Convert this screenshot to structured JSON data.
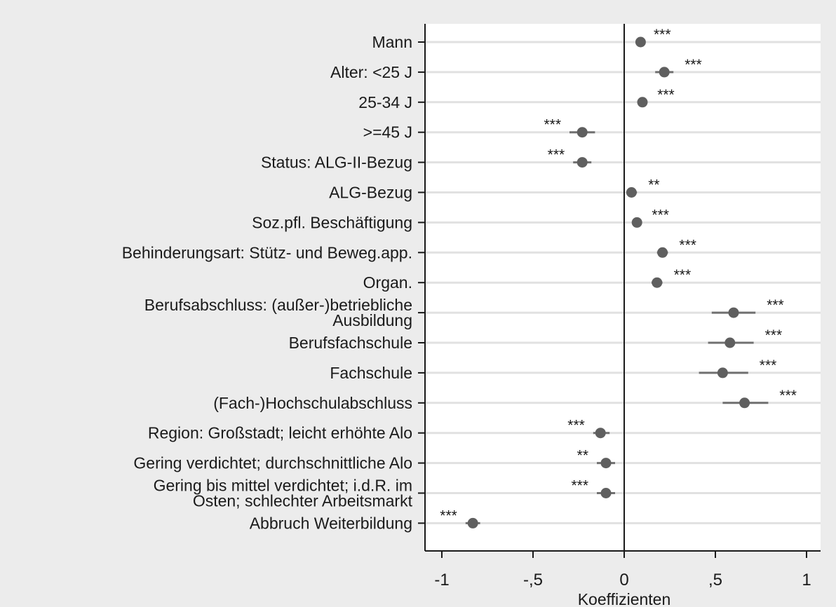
{
  "chart_data": {
    "type": "coefficient-plot",
    "xlabel": "Koeffizienten",
    "xlim": [
      -1,
      1
    ],
    "xticks": [
      {
        "value": -1,
        "label": "-1"
      },
      {
        "value": -0.5,
        "label": "-,5"
      },
      {
        "value": 0,
        "label": "0"
      },
      {
        "value": 0.5,
        "label": ",5"
      },
      {
        "value": 1,
        "label": "1"
      }
    ],
    "grid": "horizontal",
    "reference_line": 0,
    "colors": {
      "background": "#ececec",
      "plot_area": "#ffffff",
      "point": "#5f5f5f",
      "ci": "#707070",
      "grid": "#e1e1e1",
      "axis": "#1a1a1a"
    },
    "rows": [
      {
        "label": [
          "Mann"
        ],
        "coef": 0.09,
        "ci": [
          0.08,
          0.1
        ],
        "stars": "***"
      },
      {
        "label": [
          "Alter: <25 J"
        ],
        "coef": 0.22,
        "ci": [
          0.17,
          0.27
        ],
        "stars": "***"
      },
      {
        "label": [
          "25-34 J"
        ],
        "coef": 0.1,
        "ci": [
          0.08,
          0.12
        ],
        "stars": "***"
      },
      {
        "label": [
          ">=45 J"
        ],
        "coef": -0.23,
        "ci": [
          -0.3,
          -0.16
        ],
        "stars": "***"
      },
      {
        "label": [
          "Status: ALG-II-Bezug"
        ],
        "coef": -0.23,
        "ci": [
          -0.28,
          -0.18
        ],
        "stars": "***"
      },
      {
        "label": [
          "ALG-Bezug"
        ],
        "coef": 0.04,
        "ci": [
          0.02,
          0.07
        ],
        "stars": "**"
      },
      {
        "label": [
          "Soz.pfl. Beschäftigung"
        ],
        "coef": 0.07,
        "ci": [
          0.05,
          0.09
        ],
        "stars": "***"
      },
      {
        "label": [
          "Behinderungsart: Stütz- und Beweg.app."
        ],
        "coef": 0.21,
        "ci": [
          0.18,
          0.24
        ],
        "stars": "***"
      },
      {
        "label": [
          "Organ."
        ],
        "coef": 0.18,
        "ci": [
          0.15,
          0.21
        ],
        "stars": "***"
      },
      {
        "label": [
          "Berufsabschluss: (außer-)betriebliche",
          "Ausbildung"
        ],
        "coef": 0.6,
        "ci": [
          0.48,
          0.72
        ],
        "stars": "***"
      },
      {
        "label": [
          "Berufsfachschule"
        ],
        "coef": 0.58,
        "ci": [
          0.46,
          0.71
        ],
        "stars": "***"
      },
      {
        "label": [
          "Fachschule"
        ],
        "coef": 0.54,
        "ci": [
          0.41,
          0.68
        ],
        "stars": "***"
      },
      {
        "label": [
          "(Fach-)Hochschulabschluss"
        ],
        "coef": 0.66,
        "ci": [
          0.54,
          0.79
        ],
        "stars": "***"
      },
      {
        "label": [
          "Region: Großstadt; leicht erhöhte Alo"
        ],
        "coef": -0.13,
        "ci": [
          -0.17,
          -0.08
        ],
        "stars": "***"
      },
      {
        "label": [
          "Gering verdichtet; durchschnittliche Alo"
        ],
        "coef": -0.1,
        "ci": [
          -0.15,
          -0.05
        ],
        "stars": "**"
      },
      {
        "label": [
          "Gering bis mittel verdichtet; i.d.R. im",
          "Osten; schlechter Arbeitsmarkt"
        ],
        "coef": -0.1,
        "ci": [
          -0.15,
          -0.05
        ],
        "stars": "***"
      },
      {
        "label": [
          "Abbruch Weiterbildung"
        ],
        "coef": -0.83,
        "ci": [
          -0.87,
          -0.79
        ],
        "stars": "***"
      }
    ]
  }
}
